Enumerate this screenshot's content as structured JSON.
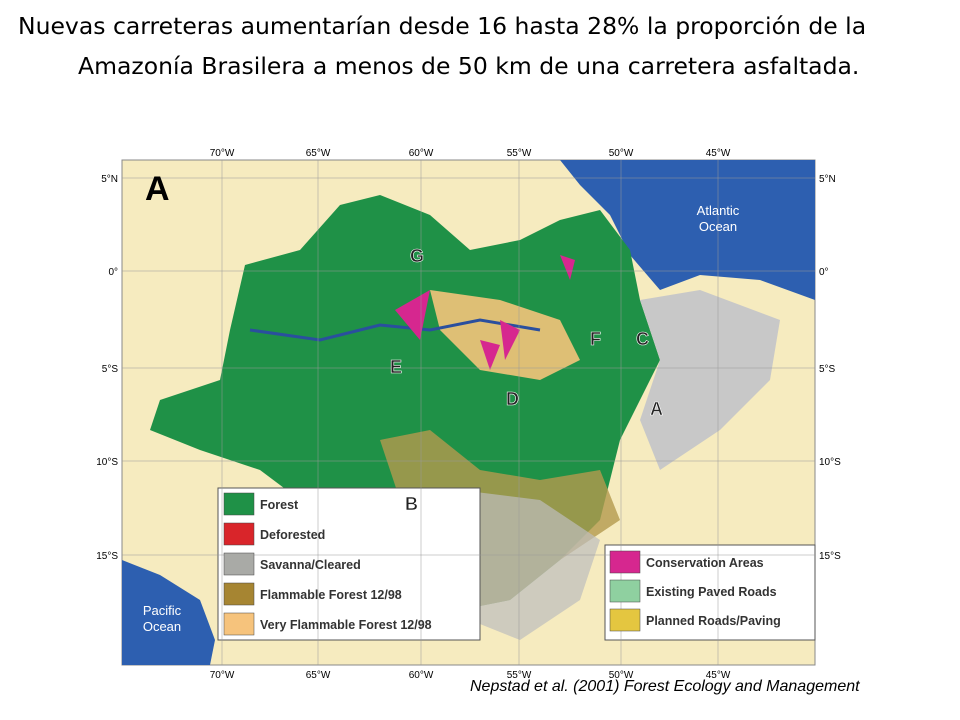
{
  "title": {
    "lines": [
      "Nuevas carreteras aumentarían desde 16 hasta 28% la proporción de la",
      "Amazonía Brasilera a menos de 50 km de una carretera asfaltada."
    ]
  },
  "map": {
    "panel_label": "A",
    "oceans": [
      {
        "lines": [
          "Atlantic",
          "Ocean"
        ]
      },
      {
        "lines": [
          "Pacific",
          "Ocean"
        ]
      }
    ],
    "longitudes": [
      "70°W",
      "65°W",
      "60°W",
      "55°W",
      "50°W",
      "45°W"
    ],
    "latitudes": [
      "5°N",
      "0°",
      "5°S",
      "10°S",
      "15°S"
    ],
    "region_labels": [
      "G",
      "E",
      "F",
      "C",
      "D",
      "A",
      "B"
    ],
    "legend_left": [
      "Forest",
      "Deforested",
      "Savanna/Cleared",
      "Flammable Forest 12/98",
      "Very Flammable Forest 12/98"
    ],
    "legend_right": [
      "Conservation Areas",
      "Existing Paved Roads",
      "Planned Roads/Paving"
    ]
  },
  "citation": "Nepstad et al. (2001) Forest Ecology and Management"
}
